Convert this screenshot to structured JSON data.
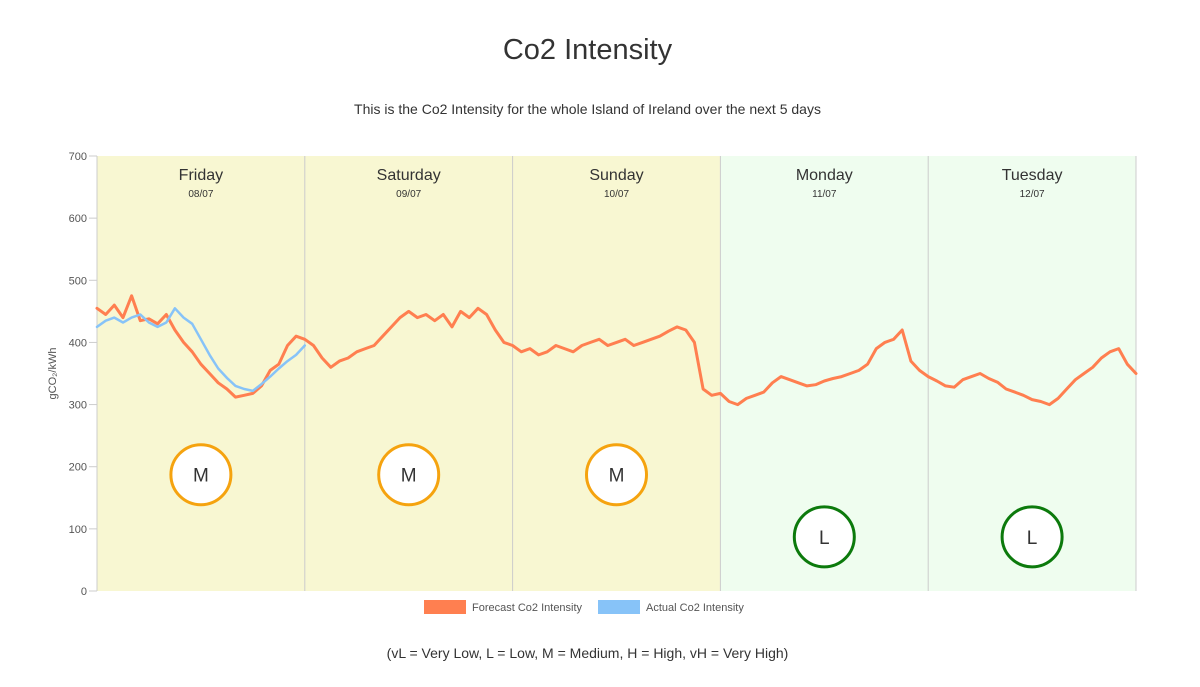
{
  "page": {
    "title": "Co2 Intensity",
    "subtitle": "This is the Co2 Intensity for the whole Island of Ireland over the next 5 days",
    "footnote": "(vL = Very Low, L = Low, M = Medium, H = High, vH = Very High)"
  },
  "colors": {
    "forecast": "#ff7f50",
    "actual": "#87c3f8",
    "medium_band": "#f8f7d2",
    "low_band": "#effdef",
    "medium_circle": "#f5a30f",
    "low_circle": "#0c7a0c",
    "grid": "#cccccc",
    "axis_text": "#555555"
  },
  "chart_data": {
    "type": "line",
    "title": "Co2 Intensity",
    "ylabel": "gCO₂/kWh",
    "xlabel": "",
    "ylim": [
      0,
      700
    ],
    "yticks": [
      0,
      100,
      200,
      300,
      400,
      500,
      600,
      700
    ],
    "x_unit": "hours from Friday 00:00",
    "days": [
      {
        "name": "Friday",
        "date": "08/07",
        "rating": "M",
        "rating_value": 200
      },
      {
        "name": "Saturday",
        "date": "09/07",
        "rating": "M",
        "rating_value": 200
      },
      {
        "name": "Sunday",
        "date": "10/07",
        "rating": "M",
        "rating_value": 200
      },
      {
        "name": "Monday",
        "date": "11/07",
        "rating": "L",
        "rating_value": 100
      },
      {
        "name": "Tuesday",
        "date": "12/07",
        "rating": "L",
        "rating_value": 100
      }
    ],
    "series": [
      {
        "name": "Forecast Co2 Intensity",
        "x": [
          0,
          1,
          2,
          3,
          4,
          5,
          6,
          7,
          8,
          9,
          10,
          11,
          12,
          13,
          14,
          15,
          16,
          17,
          18,
          19,
          20,
          21,
          22,
          23,
          24,
          25,
          26,
          27,
          28,
          29,
          30,
          31,
          32,
          33,
          34,
          35,
          36,
          37,
          38,
          39,
          40,
          41,
          42,
          43,
          44,
          45,
          46,
          47,
          48,
          49,
          50,
          51,
          52,
          53,
          54,
          55,
          56,
          57,
          58,
          59,
          60,
          61,
          62,
          63,
          64,
          65,
          66,
          67,
          68,
          69,
          70,
          71,
          72,
          73,
          74,
          75,
          76,
          77,
          78,
          79,
          80,
          81,
          82,
          83,
          84,
          85,
          86,
          87,
          88,
          89,
          90,
          91,
          92,
          93,
          94,
          95,
          96,
          97,
          98,
          99,
          100,
          101,
          102,
          103,
          104,
          105,
          106,
          107,
          108,
          109,
          110,
          111,
          112,
          113,
          114,
          115,
          116,
          117,
          118,
          119,
          120
        ],
        "values": [
          455,
          445,
          460,
          440,
          475,
          435,
          438,
          430,
          445,
          420,
          400,
          385,
          365,
          350,
          335,
          325,
          312,
          315,
          318,
          330,
          355,
          365,
          395,
          410,
          405,
          395,
          375,
          360,
          370,
          375,
          385,
          390,
          395,
          410,
          425,
          440,
          450,
          440,
          445,
          435,
          445,
          425,
          450,
          440,
          455,
          445,
          420,
          400,
          395,
          385,
          390,
          380,
          385,
          395,
          390,
          385,
          395,
          400,
          405,
          395,
          400,
          405,
          395,
          400,
          405,
          410,
          418,
          425,
          420,
          400,
          325,
          315,
          318,
          305,
          300,
          310,
          315,
          320,
          335,
          345,
          340,
          335,
          330,
          332,
          338,
          342,
          345,
          350,
          355,
          365,
          390,
          400,
          405,
          420,
          370,
          355,
          345,
          338,
          330,
          328,
          340,
          345,
          350,
          342,
          336,
          325,
          320,
          315,
          308,
          305,
          300,
          310,
          325,
          340,
          350,
          360,
          375,
          385,
          390,
          365,
          350
        ],
        "line_color": "#ff7f50"
      },
      {
        "name": "Actual Co2 Intensity",
        "x": [
          0,
          1,
          2,
          3,
          4,
          5,
          6,
          7,
          8,
          9,
          10,
          11,
          12,
          13,
          14,
          15,
          16,
          17,
          18,
          19,
          20,
          21,
          22,
          23,
          24
        ],
        "values": [
          425,
          435,
          440,
          432,
          440,
          445,
          432,
          425,
          432,
          455,
          440,
          430,
          405,
          380,
          358,
          343,
          330,
          325,
          322,
          333,
          345,
          358,
          370,
          380,
          395
        ],
        "line_color": "#87c3f8"
      }
    ],
    "legend": [
      "Forecast Co2 Intensity",
      "Actual Co2 Intensity"
    ],
    "legend_position": "bottom"
  }
}
